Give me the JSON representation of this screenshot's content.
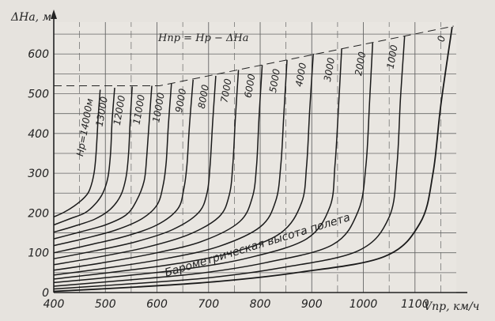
{
  "chart_data": {
    "type": "line",
    "title": "",
    "ylabel": "ΔHa, м",
    "xlabel": "Vпр, км/ч",
    "formula": "Hпр = Hр − ΔHa",
    "annotation": "Барометрическая высота полета",
    "xlim": [
      400,
      1180
    ],
    "ylim": [
      0,
      680
    ],
    "xticks": [
      400,
      500,
      600,
      700,
      800,
      900,
      1000,
      1100
    ],
    "yticks": [
      0,
      100,
      200,
      300,
      400,
      500,
      600
    ],
    "xtick_labels": [
      "400",
      "500",
      "600",
      "700",
      "800",
      "900",
      "1000",
      "1100"
    ],
    "ytick_labels": [
      "0",
      "100",
      "200",
      "300",
      "400",
      "500",
      "600"
    ],
    "grid": true,
    "envelope": [
      [
        400,
        520
      ],
      [
        605,
        520
      ],
      [
        1175,
        670
      ]
    ],
    "series": [
      {
        "name": "Hр=14000м",
        "label": "Hр=14000м",
        "points": [
          [
            400,
            190
          ],
          [
            420,
            202
          ],
          [
            440,
            218
          ],
          [
            460,
            240
          ],
          [
            470,
            260
          ],
          [
            478,
            300
          ],
          [
            482,
            350
          ],
          [
            486,
            440
          ],
          [
            490,
            510
          ]
        ]
      },
      {
        "name": "13000",
        "label": "13000",
        "points": [
          [
            400,
            170
          ],
          [
            430,
            185
          ],
          [
            460,
            200
          ],
          [
            480,
            222
          ],
          [
            495,
            250
          ],
          [
            505,
            290
          ],
          [
            510,
            350
          ],
          [
            513,
            430
          ],
          [
            518,
            515
          ]
        ]
      },
      {
        "name": "12000",
        "label": "12000",
        "points": [
          [
            400,
            152
          ],
          [
            440,
            167
          ],
          [
            480,
            185
          ],
          [
            510,
            210
          ],
          [
            530,
            245
          ],
          [
            540,
            290
          ],
          [
            545,
            350
          ],
          [
            548,
            430
          ],
          [
            552,
            518
          ]
        ]
      },
      {
        "name": "11000",
        "label": "11000",
        "points": [
          [
            400,
            135
          ],
          [
            450,
            152
          ],
          [
            500,
            170
          ],
          [
            540,
            195
          ],
          [
            560,
            230
          ],
          [
            575,
            280
          ],
          [
            580,
            340
          ],
          [
            585,
            430
          ],
          [
            590,
            520
          ]
        ]
      },
      {
        "name": "10000",
        "label": "10000",
        "points": [
          [
            400,
            118
          ],
          [
            460,
            136
          ],
          [
            520,
            157
          ],
          [
            570,
            185
          ],
          [
            600,
            220
          ],
          [
            612,
            270
          ],
          [
            618,
            330
          ],
          [
            622,
            420
          ],
          [
            628,
            525
          ]
        ]
      },
      {
        "name": "9000",
        "label": "9000",
        "points": [
          [
            400,
            100
          ],
          [
            470,
            120
          ],
          [
            540,
            142
          ],
          [
            600,
            170
          ],
          [
            640,
            210
          ],
          [
            652,
            260
          ],
          [
            658,
            320
          ],
          [
            663,
            420
          ],
          [
            670,
            535
          ]
        ]
      },
      {
        "name": "8000",
        "label": "8000",
        "points": [
          [
            400,
            85
          ],
          [
            480,
            105
          ],
          [
            560,
            128
          ],
          [
            630,
            158
          ],
          [
            680,
            200
          ],
          [
            697,
            250
          ],
          [
            703,
            320
          ],
          [
            708,
            430
          ],
          [
            714,
            545
          ]
        ]
      },
      {
        "name": "7000",
        "label": "7000",
        "points": [
          [
            400,
            70
          ],
          [
            490,
            90
          ],
          [
            580,
            114
          ],
          [
            660,
            145
          ],
          [
            720,
            190
          ],
          [
            740,
            245
          ],
          [
            747,
            320
          ],
          [
            752,
            440
          ],
          [
            758,
            560
          ]
        ]
      },
      {
        "name": "6000",
        "label": "6000",
        "points": [
          [
            400,
            56
          ],
          [
            500,
            76
          ],
          [
            600,
            100
          ],
          [
            690,
            130
          ],
          [
            760,
            178
          ],
          [
            785,
            240
          ],
          [
            793,
            320
          ],
          [
            798,
            445
          ],
          [
            804,
            572
          ]
        ]
      },
      {
        "name": "5000",
        "label": "5000",
        "points": [
          [
            400,
            44
          ],
          [
            510,
            63
          ],
          [
            620,
            86
          ],
          [
            720,
            116
          ],
          [
            800,
            165
          ],
          [
            830,
            230
          ],
          [
            840,
            320
          ],
          [
            846,
            450
          ],
          [
            852,
            585
          ]
        ]
      },
      {
        "name": "4000",
        "label": "4000",
        "points": [
          [
            400,
            34
          ],
          [
            520,
            52
          ],
          [
            640,
            73
          ],
          [
            750,
            102
          ],
          [
            840,
            150
          ],
          [
            880,
            225
          ],
          [
            890,
            320
          ],
          [
            896,
            460
          ],
          [
            903,
            600
          ]
        ]
      },
      {
        "name": "3000",
        "label": "3000",
        "points": [
          [
            400,
            25
          ],
          [
            530,
            41
          ],
          [
            660,
            60
          ],
          [
            780,
            88
          ],
          [
            890,
            135
          ],
          [
            935,
            215
          ],
          [
            945,
            320
          ],
          [
            952,
            470
          ],
          [
            958,
            613
          ]
        ]
      },
      {
        "name": "2000",
        "label": "2000",
        "points": [
          [
            400,
            16
          ],
          [
            540,
            31
          ],
          [
            680,
            48
          ],
          [
            810,
            75
          ],
          [
            940,
            120
          ],
          [
            990,
            205
          ],
          [
            1005,
            320
          ],
          [
            1012,
            480
          ],
          [
            1018,
            628
          ]
        ]
      },
      {
        "name": "1000",
        "label": "1000",
        "points": [
          [
            400,
            9
          ],
          [
            550,
            22
          ],
          [
            700,
            37
          ],
          [
            840,
            62
          ],
          [
            990,
            105
          ],
          [
            1050,
            190
          ],
          [
            1065,
            320
          ],
          [
            1072,
            490
          ],
          [
            1080,
            645
          ]
        ]
      },
      {
        "name": "0",
        "label": "0",
        "points": [
          [
            400,
            3
          ],
          [
            560,
            14
          ],
          [
            720,
            28
          ],
          [
            870,
            50
          ],
          [
            1040,
            90
          ],
          [
            1110,
            175
          ],
          [
            1135,
            300
          ],
          [
            1150,
            470
          ],
          [
            1172,
            668
          ]
        ]
      }
    ]
  }
}
